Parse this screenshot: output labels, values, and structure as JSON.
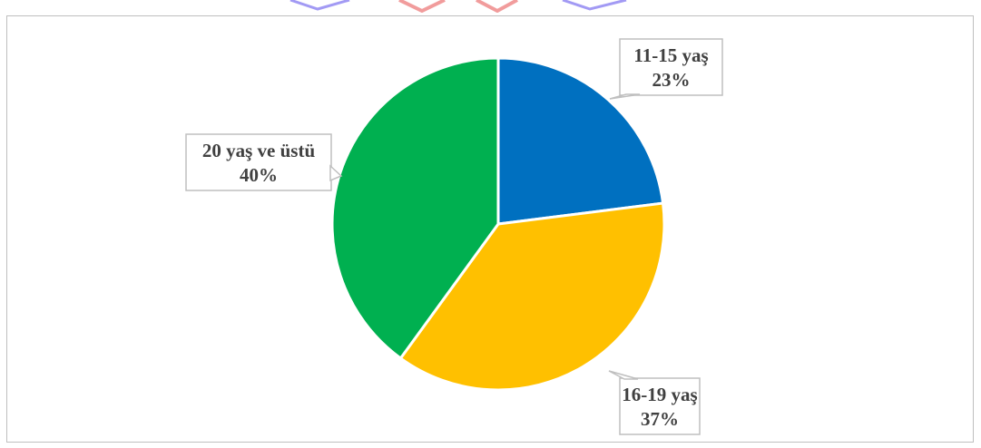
{
  "chart_data": {
    "type": "pie",
    "slices": [
      {
        "label": "11-15 yaş",
        "value": 23,
        "value_label": "23%",
        "color": "#0070C0"
      },
      {
        "label": "16-19 yaş",
        "value": 37,
        "value_label": "37%",
        "color": "#FFC000"
      },
      {
        "label": "20 yaş ve üstü",
        "value": 40,
        "value_label": "40%",
        "color": "#00B050"
      }
    ],
    "legend": "none",
    "start_angle_deg": 0,
    "direction": "clockwise"
  },
  "watermark": {
    "colors": [
      "#4f52d9",
      "#e03b3b"
    ]
  }
}
